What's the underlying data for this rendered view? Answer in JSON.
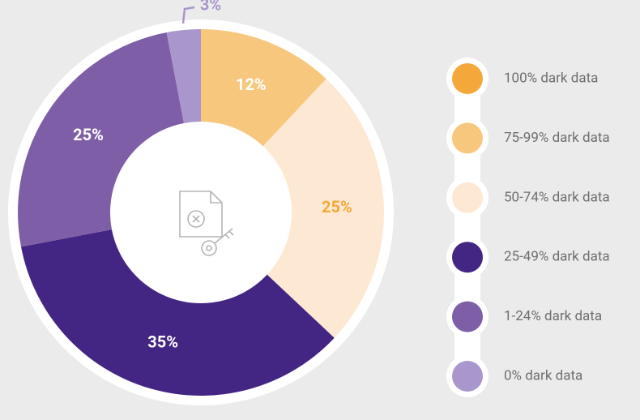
{
  "chart_data": {
    "type": "pie",
    "categories": [
      "100% dark data",
      "75-99% dark data",
      "50-74% dark data",
      "25-49% dark data",
      "1-24% dark data",
      "0% dark data"
    ],
    "values": [
      0,
      12,
      25,
      35,
      25,
      3
    ],
    "value_labels": [
      null,
      "12%",
      "25%",
      "35%",
      "25%",
      "3%"
    ],
    "colors": [
      "#f5a83a",
      "#f8c77e",
      "#fde9d3",
      "#432683",
      "#7e5fa7",
      "#a996cc"
    ],
    "label_colors": [
      "#ffffff",
      "#ffffff",
      "#f5a83a",
      "#ffffff",
      "#ffffff",
      "#a996cc"
    ],
    "donut": true,
    "legend": "right"
  }
}
